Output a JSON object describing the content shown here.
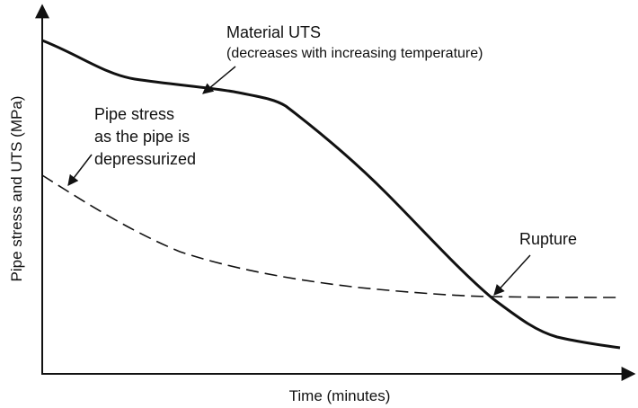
{
  "axes": {
    "y_label": "Pipe stress and UTS (MPa)",
    "x_label": "Time (minutes)"
  },
  "annotations": {
    "uts": {
      "title": "Material UTS",
      "note": "(decreases with increasing temperature)"
    },
    "pipe_stress": {
      "lines": [
        "Pipe stress",
        "as the pipe is",
        "depressurized"
      ]
    },
    "rupture": "Rupture"
  }
}
